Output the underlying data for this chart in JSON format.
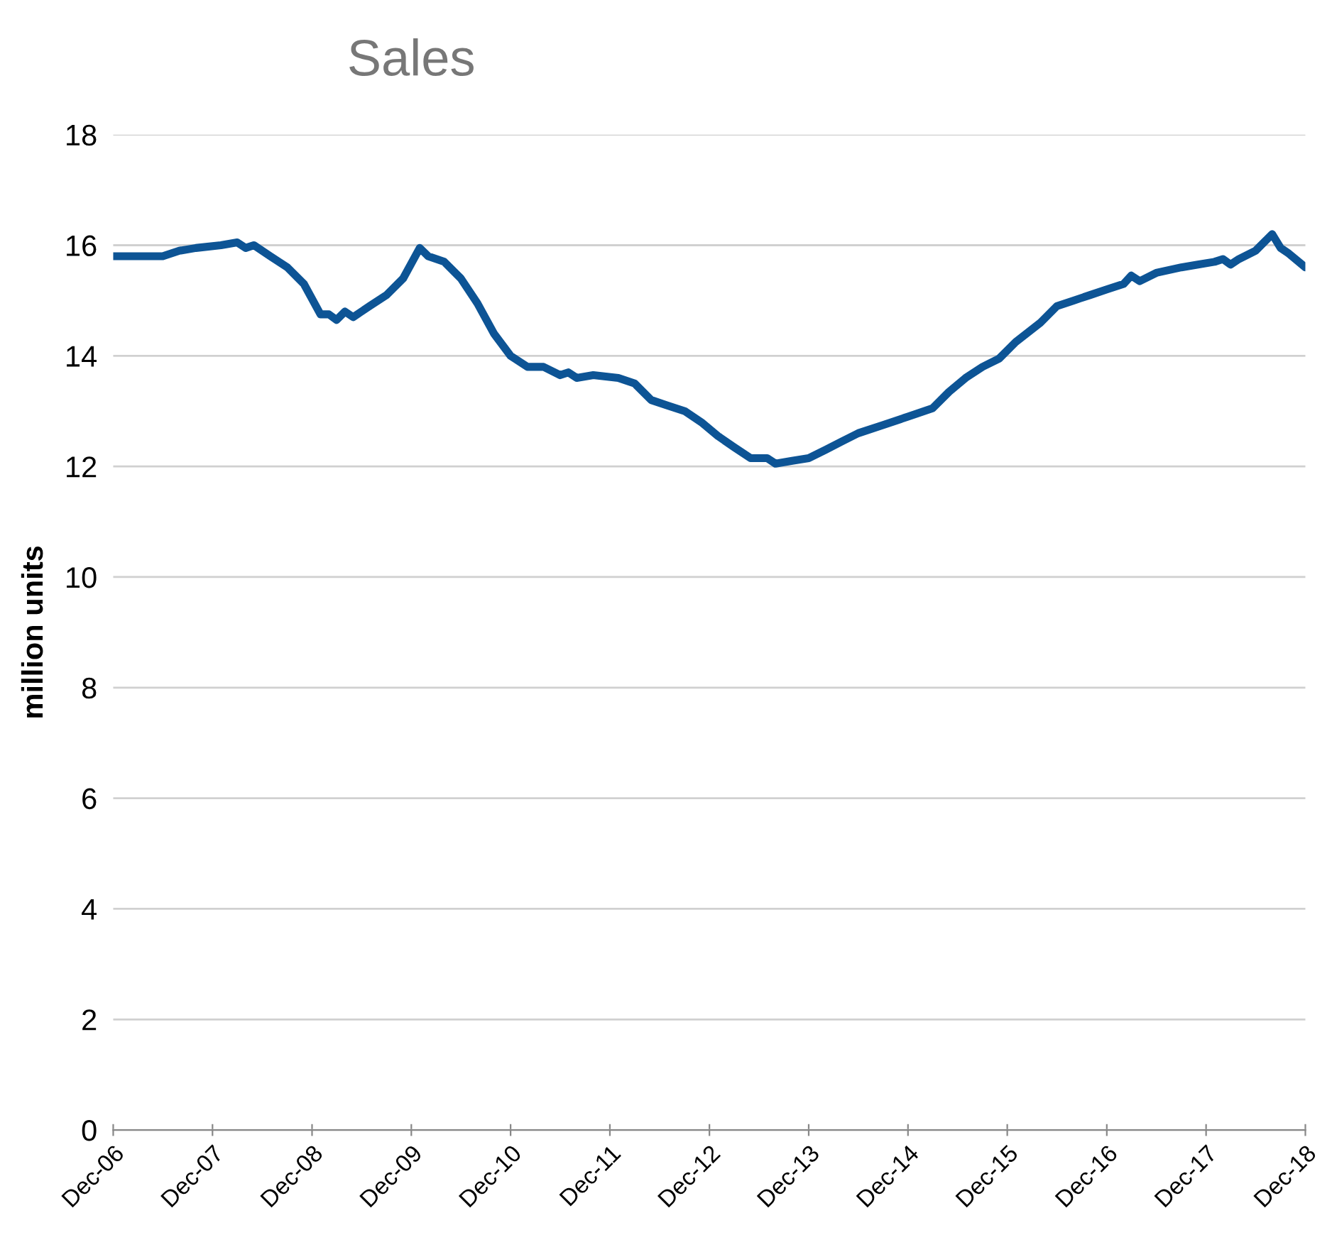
{
  "chart_data": {
    "type": "line",
    "title": "Sales",
    "ylabel": "million units",
    "x": [
      "2006-12",
      "2007-03",
      "2007-06",
      "2007-08",
      "2007-10",
      "2008-01",
      "2008-03",
      "2008-04",
      "2008-05",
      "2008-07",
      "2008-09",
      "2008-11",
      "2009-01",
      "2009-02",
      "2009-03",
      "2009-04",
      "2009-05",
      "2009-07",
      "2009-09",
      "2009-11",
      "2010-01",
      "2010-02",
      "2010-04",
      "2010-06",
      "2010-08",
      "2010-10",
      "2010-12",
      "2011-02",
      "2011-04",
      "2011-06",
      "2011-07",
      "2011-08",
      "2011-10",
      "2012-01",
      "2012-03",
      "2012-05",
      "2012-07",
      "2012-09",
      "2012-11",
      "2013-01",
      "2013-03",
      "2013-05",
      "2013-07",
      "2013-08",
      "2013-10",
      "2013-12",
      "2014-02",
      "2014-04",
      "2014-06",
      "2014-09",
      "2014-12",
      "2015-03",
      "2015-05",
      "2015-07",
      "2015-09",
      "2015-11",
      "2016-01",
      "2016-04",
      "2016-06",
      "2016-08",
      "2016-10",
      "2016-12",
      "2017-02",
      "2017-03",
      "2017-04",
      "2017-06",
      "2017-09",
      "2017-11",
      "2018-01",
      "2018-02",
      "2018-03",
      "2018-04",
      "2018-06",
      "2018-08",
      "2018-09",
      "2018-10",
      "2018-12"
    ],
    "series": [
      {
        "color": "#0d5495",
        "values": [
          15.8,
          15.8,
          15.8,
          15.9,
          15.95,
          16.0,
          16.05,
          15.95,
          16.0,
          15.8,
          15.6,
          15.3,
          14.75,
          14.75,
          14.65,
          14.8,
          14.7,
          14.9,
          15.1,
          15.4,
          15.95,
          15.8,
          15.7,
          15.4,
          14.95,
          14.4,
          14.0,
          13.8,
          13.8,
          13.65,
          13.7,
          13.6,
          13.65,
          13.6,
          13.5,
          13.2,
          13.1,
          13.0,
          12.8,
          12.55,
          12.35,
          12.15,
          12.15,
          12.05,
          12.1,
          12.15,
          12.3,
          12.45,
          12.6,
          12.75,
          12.9,
          13.05,
          13.35,
          13.6,
          13.8,
          13.95,
          14.25,
          14.6,
          14.9,
          15.0,
          15.1,
          15.2,
          15.3,
          15.45,
          15.35,
          15.5,
          15.6,
          15.65,
          15.7,
          15.75,
          15.65,
          15.75,
          15.9,
          16.2,
          15.95,
          15.85,
          15.6
        ]
      }
    ],
    "xlim": [
      "2006-12",
      "2018-12"
    ],
    "xticks": [
      {
        "value": "2006-12",
        "label": "Dec-06"
      },
      {
        "value": "2007-12",
        "label": "Dec-07"
      },
      {
        "value": "2008-12",
        "label": "Dec-08"
      },
      {
        "value": "2009-12",
        "label": "Dec-09"
      },
      {
        "value": "2010-12",
        "label": "Dec-10"
      },
      {
        "value": "2011-12",
        "label": "Dec-11"
      },
      {
        "value": "2012-12",
        "label": "Dec-12"
      },
      {
        "value": "2013-12",
        "label": "Dec-13"
      },
      {
        "value": "2014-12",
        "label": "Dec-14"
      },
      {
        "value": "2015-12",
        "label": "Dec-15"
      },
      {
        "value": "2016-12",
        "label": "Dec-16"
      },
      {
        "value": "2017-12",
        "label": "Dec-17"
      },
      {
        "value": "2018-12",
        "label": "Dec-18"
      }
    ],
    "ylim": [
      0,
      18
    ],
    "yticks": [
      0,
      2,
      4,
      6,
      8,
      10,
      12,
      14,
      16,
      18
    ],
    "grid": "y",
    "legend": false,
    "marker": "none",
    "line_style": "solid"
  }
}
